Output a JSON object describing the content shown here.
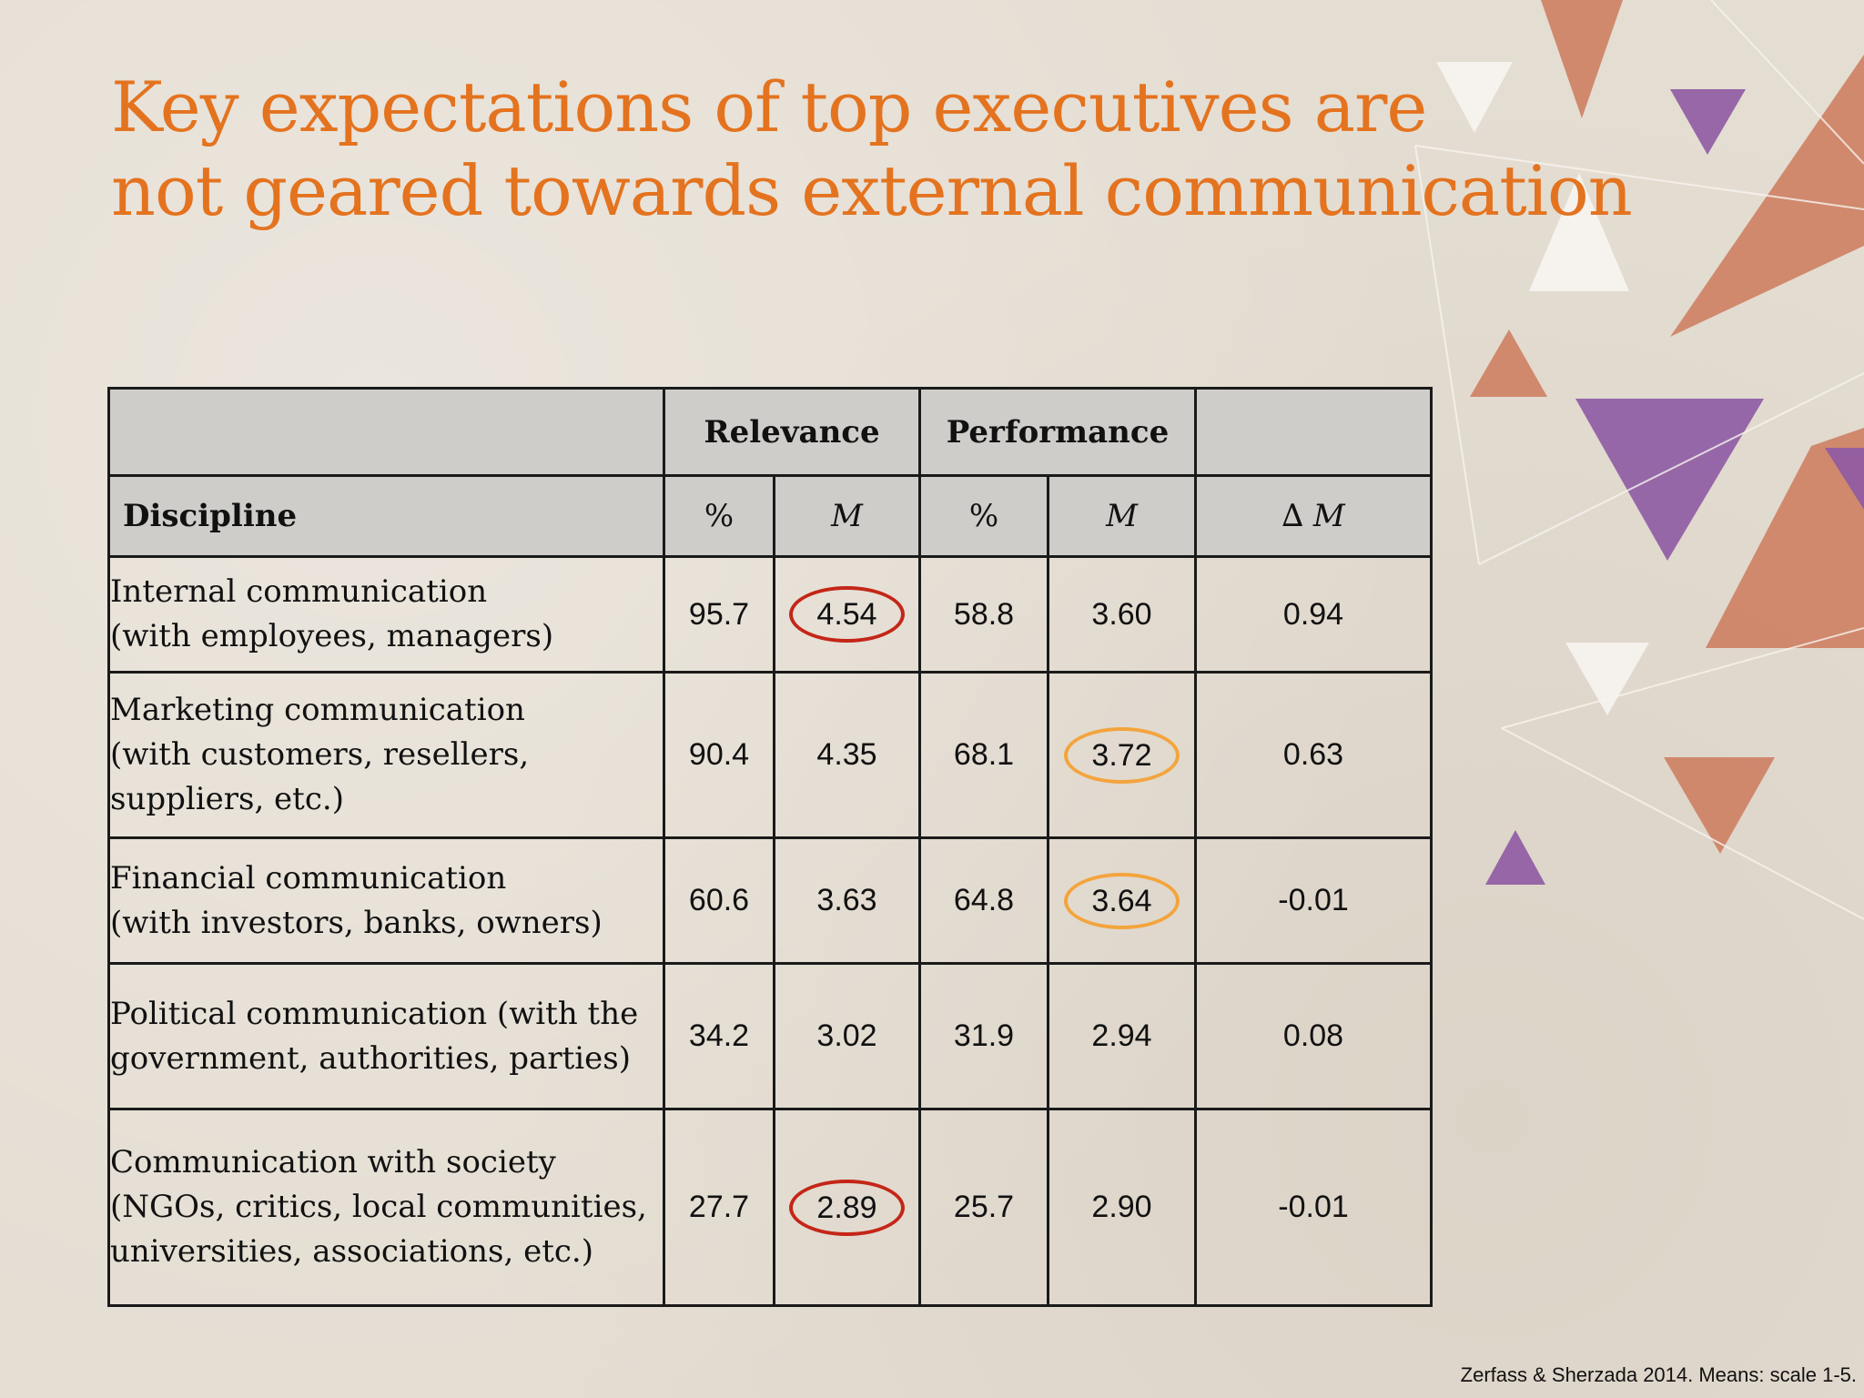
{
  "title_lines": [
    "Key expectations of top executives are",
    "not geared towards external communication"
  ],
  "table": {
    "group_headers": {
      "relevance": "Relevance",
      "performance": "Performance"
    },
    "column_headers": {
      "discipline": "Discipline",
      "rel_pct": "%",
      "rel_m": "M",
      "perf_pct": "%",
      "perf_m": "M",
      "delta": "∆ M"
    },
    "rows": [
      {
        "label_lines": [
          "Internal communication",
          "(with employees, managers)"
        ],
        "rel_pct": "95.7",
        "rel_m": "4.54",
        "perf_pct": "58.8",
        "perf_m": "3.60",
        "delta": "0.94",
        "highlight": {
          "rel_m": "red"
        }
      },
      {
        "label_lines": [
          "Marketing communication",
          "(with customers, resellers,",
          "suppliers, etc.)"
        ],
        "rel_pct": "90.4",
        "rel_m": "4.35",
        "perf_pct": "68.1",
        "perf_m": "3.72",
        "delta": "0.63",
        "highlight": {
          "perf_m": "orange"
        }
      },
      {
        "label_lines": [
          "Financial communication",
          "(with investors, banks, owners)"
        ],
        "rel_pct": "60.6",
        "rel_m": "3.63",
        "perf_pct": "64.8",
        "perf_m": "3.64",
        "delta": "-0.01",
        "highlight": {
          "perf_m": "orange"
        }
      },
      {
        "label_lines": [
          "Political communication (with the",
          "government, authorities, parties)"
        ],
        "rel_pct": "34.2",
        "rel_m": "3.02",
        "perf_pct": "31.9",
        "perf_m": "2.94",
        "delta": "0.08",
        "highlight": {}
      },
      {
        "label_lines": [
          "Communication with society",
          "(NGOs, critics, local communities,",
          "universities, associations, etc.)"
        ],
        "rel_pct": "27.7",
        "rel_m": "2.89",
        "perf_pct": "25.7",
        "perf_m": "2.90",
        "delta": "-0.01",
        "highlight": {
          "rel_m": "red"
        }
      }
    ]
  },
  "footer": "Zerfass & Sherzada 2014. Means: scale 1-5.",
  "colors": {
    "title": "#e4731f",
    "header_fill": "#cfcdca",
    "red_ring": "#c42618",
    "orange_ring": "#f4a43d",
    "triangle_orange": "#cd7a5c",
    "triangle_purple": "#8e5aa3"
  }
}
